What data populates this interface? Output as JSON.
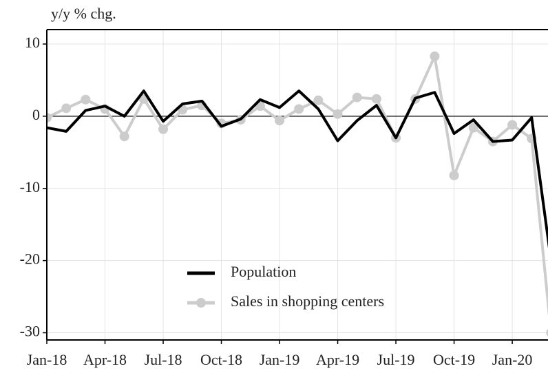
{
  "chart_data": {
    "type": "line",
    "y_label": "y/y % chg.",
    "categories": [
      "Jan-18",
      null,
      null,
      "Apr-18",
      null,
      null,
      "Jul-18",
      null,
      null,
      "Oct-18",
      null,
      null,
      "Jan-19",
      null,
      null,
      "Apr-19",
      null,
      null,
      "Jul-19",
      null,
      null,
      "Oct-19",
      null,
      null,
      "Jan-20",
      null,
      null
    ],
    "series": [
      {
        "name": "Population",
        "color": "#000000",
        "markers": false,
        "values": [
          -1.6,
          -2.1,
          0.8,
          1.4,
          0,
          3.5,
          -0.7,
          1.7,
          2.1,
          -1.4,
          -0.4,
          2.3,
          1.2,
          3.5,
          1.0,
          -3.4,
          -0.6,
          1.5,
          -3.0,
          2.5,
          3.3,
          -2.4,
          -0.5,
          -3.5,
          -3.3,
          -0.2,
          -20
        ]
      },
      {
        "name": "Sales in shopping centers",
        "color": "#cccccc",
        "markers": true,
        "values": [
          -0.2,
          1.1,
          2.3,
          1.0,
          -2.8,
          2.4,
          -1.8,
          0.9,
          1.5,
          -1.0,
          -0.5,
          1.4,
          -0.6,
          1.0,
          2.2,
          0.3,
          2.6,
          2.4,
          -3.0,
          2.4,
          8.3,
          -8.2,
          -1.6,
          -3.5,
          -1.2,
          -3.1,
          -30
        ]
      }
    ],
    "ylim": [
      -31,
      12
    ],
    "yticks": [
      -30,
      -20,
      -10,
      0,
      10
    ],
    "grid": true
  }
}
